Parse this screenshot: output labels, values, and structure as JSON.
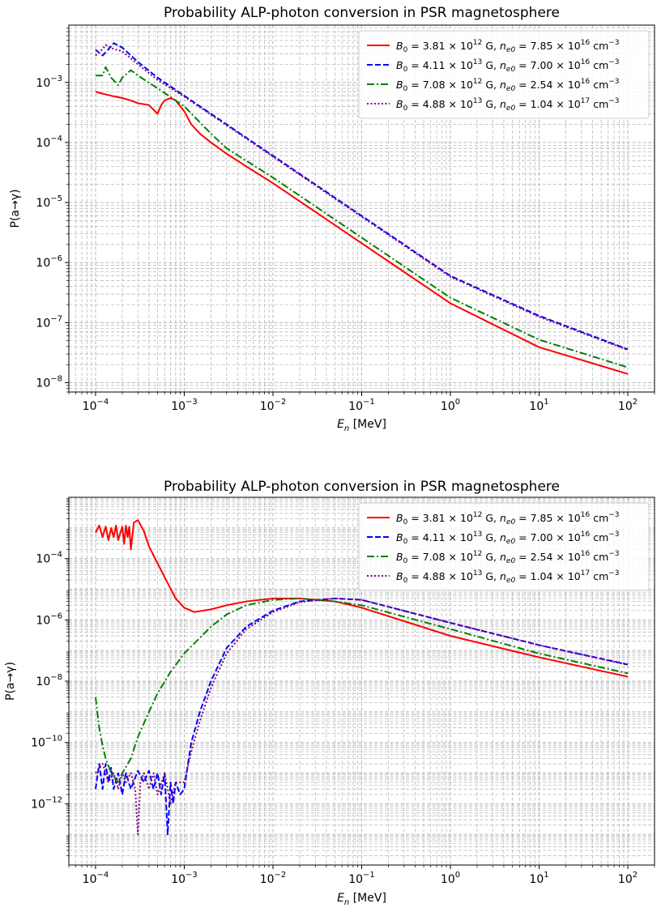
{
  "chart_data": [
    {
      "type": "line",
      "title": "Probability ALP-photon conversion in PSR magnetosphere",
      "xlabel": "E_n [MeV]",
      "ylabel": "P(a→γ)",
      "xscale": "log",
      "yscale": "log",
      "xlim": [
        5e-05,
        200
      ],
      "ylim": [
        7e-09,
        0.009
      ],
      "x_tick_labels": [
        "10^-4",
        "10^-3",
        "10^-2",
        "10^-1",
        "10^0",
        "10^1",
        "10^2"
      ],
      "y_tick_labels": [
        "10^-8",
        "10^-7",
        "10^-6",
        "10^-5",
        "10^-4",
        "10^-3"
      ],
      "grid": "both, major and minor, dashed",
      "legend_position": "top-right",
      "series": [
        {
          "name": "B0 = 3.81×10^12 G, ne0 = 7.85×10^16 cm^-3",
          "color": "#ff0000",
          "linestyle": "solid",
          "points": [
            [
              0.0001,
              0.0007
            ],
            [
              0.00012,
              0.00065
            ],
            [
              0.00015,
              0.0006
            ],
            [
              0.0002,
              0.00055
            ],
            [
              0.00025,
              0.0005
            ],
            [
              0.0003,
              0.00045
            ],
            [
              0.0004,
              0.00042
            ],
            [
              0.0005,
              0.0003
            ],
            [
              0.00055,
              0.00042
            ],
            [
              0.0006,
              0.0005
            ],
            [
              0.0007,
              0.00055
            ],
            [
              0.0008,
              0.0005
            ],
            [
              0.001,
              0.00033
            ],
            [
              0.0012,
              0.0002
            ],
            [
              0.0015,
              0.00014
            ],
            [
              0.002,
              0.0001
            ],
            [
              0.003,
              6.5e-05
            ],
            [
              0.005,
              4e-05
            ],
            [
              0.01,
              2.1e-05
            ],
            [
              0.1,
              2.1e-06
            ],
            [
              1,
              2.1e-07
            ],
            [
              10,
              3.9e-08
            ],
            [
              100,
              1.4e-08
            ]
          ]
        },
        {
          "name": "B0 = 4.11×10^13 G, ne0 = 7.00×10^16 cm^-3",
          "color": "#0000ff",
          "linestyle": "dashed",
          "points": [
            [
              0.0001,
              0.0035
            ],
            [
              0.00012,
              0.0028
            ],
            [
              0.00015,
              0.004
            ],
            [
              0.00016,
              0.0045
            ],
            [
              0.0002,
              0.0038
            ],
            [
              0.0003,
              0.0022
            ],
            [
              0.0005,
              0.0012
            ],
            [
              0.001,
              0.0006
            ],
            [
              0.002,
              0.0003
            ],
            [
              0.01,
              6e-05
            ],
            [
              0.1,
              6e-06
            ],
            [
              1,
              6e-07
            ],
            [
              10,
              1.3e-07
            ],
            [
              100,
              3.6e-08
            ]
          ]
        },
        {
          "name": "B0 = 7.08×10^12 G, ne0 = 2.54×10^16 cm^-3",
          "color": "#008000",
          "linestyle": "dashdot",
          "points": [
            [
              0.0001,
              0.0013
            ],
            [
              0.00012,
              0.0013
            ],
            [
              0.00013,
              0.0018
            ],
            [
              0.00015,
              0.0012
            ],
            [
              0.00018,
              0.0009
            ],
            [
              0.0002,
              0.0012
            ],
            [
              0.00025,
              0.0016
            ],
            [
              0.0003,
              0.0013
            ],
            [
              0.0005,
              0.0008
            ],
            [
              0.001,
              0.0004
            ],
            [
              0.002,
              0.00014
            ],
            [
              0.003,
              8e-05
            ],
            [
              0.01,
              2.6e-05
            ],
            [
              0.1,
              2.6e-06
            ],
            [
              1,
              2.6e-07
            ],
            [
              10,
              5.2e-08
            ],
            [
              100,
              1.8e-08
            ]
          ]
        },
        {
          "name": "B0 = 4.88×10^13 G, ne0 = 1.04×10^17 cm^-3",
          "color": "#800080",
          "linestyle": "dotted",
          "points": [
            [
              0.0001,
              0.0028
            ],
            [
              0.00012,
              0.0036
            ],
            [
              0.00013,
              0.0042
            ],
            [
              0.00016,
              0.0036
            ],
            [
              0.0002,
              0.0033
            ],
            [
              0.0003,
              0.002
            ],
            [
              0.0005,
              0.0011
            ],
            [
              0.001,
              0.00058
            ],
            [
              0.002,
              0.00029
            ],
            [
              0.01,
              5.8e-05
            ],
            [
              0.1,
              5.8e-06
            ],
            [
              1,
              5.8e-07
            ],
            [
              10,
              1.25e-07
            ],
            [
              100,
              3.5e-08
            ]
          ]
        }
      ]
    },
    {
      "type": "line",
      "title": "Probability ALP-photon conversion in PSR magnetosphere",
      "xlabel": "E_n [MeV]",
      "ylabel": "P(a→γ)",
      "xscale": "log",
      "yscale": "log",
      "xlim": [
        5e-05,
        200
      ],
      "ylim": [
        1e-14,
        0.01
      ],
      "x_tick_labels": [
        "10^-4",
        "10^-3",
        "10^-2",
        "10^-1",
        "10^0",
        "10^1",
        "10^2"
      ],
      "y_tick_labels": [
        "10^-12",
        "10^-10",
        "10^-8",
        "10^-6",
        "10^-4"
      ],
      "grid": "both, major and minor, dashed",
      "legend_position": "top-right",
      "series": [
        {
          "name": "B0 = 3.81×10^12 G, ne0 = 7.85×10^16 cm^-3",
          "color": "#ff0000",
          "linestyle": "solid",
          "points": [
            [
              0.0001,
              0.0007
            ],
            [
              0.00011,
              0.0012
            ],
            [
              0.00012,
              0.0005
            ],
            [
              0.00013,
              0.0011
            ],
            [
              0.00014,
              0.0004
            ],
            [
              0.00015,
              0.001
            ],
            [
              0.00016,
              0.0005
            ],
            [
              0.00017,
              0.0012
            ],
            [
              0.00018,
              0.0004
            ],
            [
              0.0002,
              0.0011
            ],
            [
              0.00021,
              0.0003
            ],
            [
              0.00022,
              0.0012
            ],
            [
              0.00023,
              0.0005
            ],
            [
              0.00024,
              0.0011
            ],
            [
              0.00025,
              0.0002
            ],
            [
              0.00027,
              0.0015
            ],
            [
              0.0003,
              0.0018
            ],
            [
              0.00035,
              0.0008
            ],
            [
              0.0004,
              0.00025
            ],
            [
              0.0005,
              7e-05
            ],
            [
              0.0006,
              2.5e-05
            ],
            [
              0.0008,
              5e-06
            ],
            [
              0.001,
              2.5e-06
            ],
            [
              0.0013,
              1.8e-06
            ],
            [
              0.002,
              2.2e-06
            ],
            [
              0.003,
              3e-06
            ],
            [
              0.005,
              4e-06
            ],
            [
              0.01,
              5e-06
            ],
            [
              0.02,
              5e-06
            ],
            [
              0.05,
              4e-06
            ],
            [
              0.1,
              2.5e-06
            ],
            [
              1,
              3e-07
            ],
            [
              10,
              6e-08
            ],
            [
              100,
              1.4e-08
            ]
          ]
        },
        {
          "name": "B0 = 4.11×10^13 G, ne0 = 7.00×10^16 cm^-3",
          "color": "#0000ff",
          "linestyle": "dashed",
          "points": [
            [
              0.0001,
              3e-12
            ],
            [
              0.00011,
              2e-11
            ],
            [
              0.00012,
              3e-12
            ],
            [
              0.00013,
              2e-11
            ],
            [
              0.00014,
              5e-12
            ],
            [
              0.00015,
              1.5e-11
            ],
            [
              0.00016,
              3e-12
            ],
            [
              0.00018,
              1e-11
            ],
            [
              0.0002,
              2e-12
            ],
            [
              0.00022,
              1e-11
            ],
            [
              0.00025,
              3e-12
            ],
            [
              0.0003,
              1.2e-11
            ],
            [
              0.00035,
              5e-12
            ],
            [
              0.0004,
              1.2e-11
            ],
            [
              0.00045,
              3e-12
            ],
            [
              0.0005,
              1e-11
            ],
            [
              0.00055,
              2e-12
            ],
            [
              0.0006,
              1e-11
            ],
            [
              0.00065,
              1e-13
            ],
            [
              0.0007,
              5e-12
            ],
            [
              0.00075,
              1e-12
            ],
            [
              0.0008,
              5e-12
            ],
            [
              0.0009,
              2e-12
            ],
            [
              0.001,
              3e-12
            ],
            [
              0.0011,
              2e-11
            ],
            [
              0.0012,
              1e-10
            ],
            [
              0.0015,
              1e-09
            ],
            [
              0.002,
              1e-08
            ],
            [
              0.003,
              1.2e-07
            ],
            [
              0.005,
              6e-07
            ],
            [
              0.01,
              2e-06
            ],
            [
              0.02,
              4e-06
            ],
            [
              0.05,
              5e-06
            ],
            [
              0.1,
              4.5e-06
            ],
            [
              1,
              8e-07
            ],
            [
              10,
              1.5e-07
            ],
            [
              100,
              3.5e-08
            ]
          ]
        },
        {
          "name": "B0 = 7.08×10^12 G, ne0 = 2.54×10^16 cm^-3",
          "color": "#008000",
          "linestyle": "dashdot",
          "points": [
            [
              0.0001,
              3e-09
            ],
            [
              0.00011,
              3e-10
            ],
            [
              0.00012,
              8e-11
            ],
            [
              0.00013,
              3e-11
            ],
            [
              0.00015,
              1e-11
            ],
            [
              0.00018,
              5e-12
            ],
            [
              0.0002,
              1e-11
            ],
            [
              0.00025,
              3e-11
            ],
            [
              0.0003,
              1.5e-10
            ],
            [
              0.0004,
              1e-09
            ],
            [
              0.0005,
              4e-09
            ],
            [
              0.0007,
              2e-08
            ],
            [
              0.001,
              8e-08
            ],
            [
              0.002,
              6e-07
            ],
            [
              0.003,
              1.5e-06
            ],
            [
              0.005,
              3e-06
            ],
            [
              0.01,
              4.5e-06
            ],
            [
              0.02,
              5e-06
            ],
            [
              0.05,
              4e-06
            ],
            [
              0.1,
              3e-06
            ],
            [
              1,
              5e-07
            ],
            [
              10,
              8e-08
            ],
            [
              100,
              1.8e-08
            ]
          ]
        },
        {
          "name": "B0 = 4.88×10^13 G, ne0 = 1.04×10^17 cm^-3",
          "color": "#800080",
          "linestyle": "dotted",
          "points": [
            [
              0.0001,
              1e-11
            ],
            [
              0.00012,
              2e-11
            ],
            [
              0.00014,
              5e-12
            ],
            [
              0.00016,
              1e-11
            ],
            [
              0.00018,
              3e-12
            ],
            [
              0.0002,
              1e-11
            ],
            [
              0.00022,
              5e-12
            ],
            [
              0.00025,
              1e-11
            ],
            [
              0.00028,
              3e-12
            ],
            [
              0.0003,
              1e-13
            ],
            [
              0.00032,
              5e-12
            ],
            [
              0.00035,
              1e-11
            ],
            [
              0.0004,
              3e-12
            ],
            [
              0.00045,
              1e-11
            ],
            [
              0.0005,
              2e-12
            ],
            [
              0.0006,
              1e-11
            ],
            [
              0.0007,
              1e-12
            ],
            [
              0.0008,
              5e-12
            ],
            [
              0.001,
              5e-12
            ],
            [
              0.0012,
              5e-11
            ],
            [
              0.0015,
              5e-10
            ],
            [
              0.002,
              6e-09
            ],
            [
              0.003,
              8e-08
            ],
            [
              0.005,
              5e-07
            ],
            [
              0.01,
              1.8e-06
            ],
            [
              0.02,
              3.8e-06
            ],
            [
              0.05,
              5e-06
            ],
            [
              0.1,
              4.5e-06
            ],
            [
              1,
              8e-07
            ],
            [
              10,
              1.5e-07
            ],
            [
              100,
              3.4e-08
            ]
          ]
        }
      ]
    }
  ],
  "legend_labels": [
    {
      "B0": "3.81",
      "B0exp": "12",
      "ne": "7.85",
      "neexp": "16"
    },
    {
      "B0": "4.11",
      "B0exp": "13",
      "ne": "7.00",
      "neexp": "16"
    },
    {
      "B0": "7.08",
      "B0exp": "12",
      "ne": "2.54",
      "neexp": "16"
    },
    {
      "B0": "4.88",
      "B0exp": "13",
      "ne": "1.04",
      "neexp": "17"
    }
  ]
}
